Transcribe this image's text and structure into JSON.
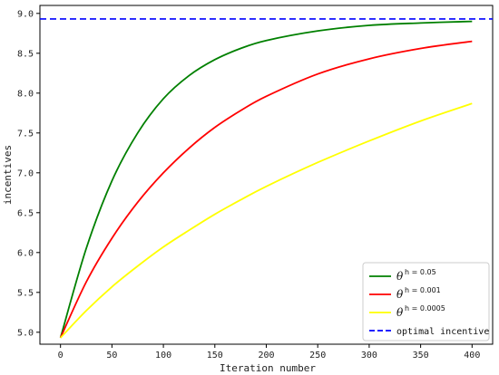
{
  "chart_data": {
    "type": "line",
    "xlabel": "Iteration number",
    "ylabel": "incentives",
    "xlim": [
      -20,
      420
    ],
    "ylim": [
      4.85,
      9.1
    ],
    "xticks": [
      0,
      50,
      100,
      150,
      200,
      250,
      300,
      350,
      400
    ],
    "yticks": [
      5.0,
      5.5,
      6.0,
      6.5,
      7.0,
      7.5,
      8.0,
      8.5,
      9.0
    ],
    "xtick_labels": [
      "0",
      "50",
      "100",
      "150",
      "200",
      "250",
      "300",
      "350",
      "400"
    ],
    "ytick_labels": [
      "5.0",
      "5.5",
      "6.0",
      "6.5",
      "7.0",
      "7.5",
      "8.0",
      "8.5",
      "9.0"
    ],
    "grid": false,
    "legend_position": "bottom-right",
    "series": [
      {
        "symbol": "θ",
        "superscript": "h = 0.05",
        "color": "#008000",
        "style": "solid",
        "x": [
          0,
          25,
          50,
          75,
          100,
          125,
          150,
          175,
          200,
          250,
          300,
          350,
          400
        ],
        "y": [
          4.93,
          6.05,
          6.9,
          7.5,
          7.93,
          8.22,
          8.42,
          8.56,
          8.66,
          8.78,
          8.85,
          8.88,
          8.9
        ]
      },
      {
        "symbol": "θ",
        "superscript": "h = 0.001",
        "color": "#ff0000",
        "style": "solid",
        "x": [
          0,
          25,
          50,
          75,
          100,
          125,
          150,
          175,
          200,
          250,
          300,
          350,
          400
        ],
        "y": [
          4.93,
          5.63,
          6.18,
          6.63,
          7.0,
          7.31,
          7.57,
          7.78,
          7.96,
          8.24,
          8.43,
          8.56,
          8.65
        ]
      },
      {
        "symbol": "θ",
        "superscript": "h = 0.0005",
        "color": "#ffff00",
        "style": "solid",
        "x": [
          0,
          25,
          50,
          75,
          100,
          125,
          150,
          175,
          200,
          250,
          300,
          350,
          400
        ],
        "y": [
          4.93,
          5.27,
          5.57,
          5.83,
          6.07,
          6.28,
          6.48,
          6.66,
          6.83,
          7.13,
          7.4,
          7.65,
          7.87
        ]
      },
      {
        "name": "optimal incentive",
        "color": "#0000ff",
        "style": "dashed",
        "x": [
          -20,
          420
        ],
        "y": [
          8.93,
          8.93
        ]
      }
    ]
  }
}
